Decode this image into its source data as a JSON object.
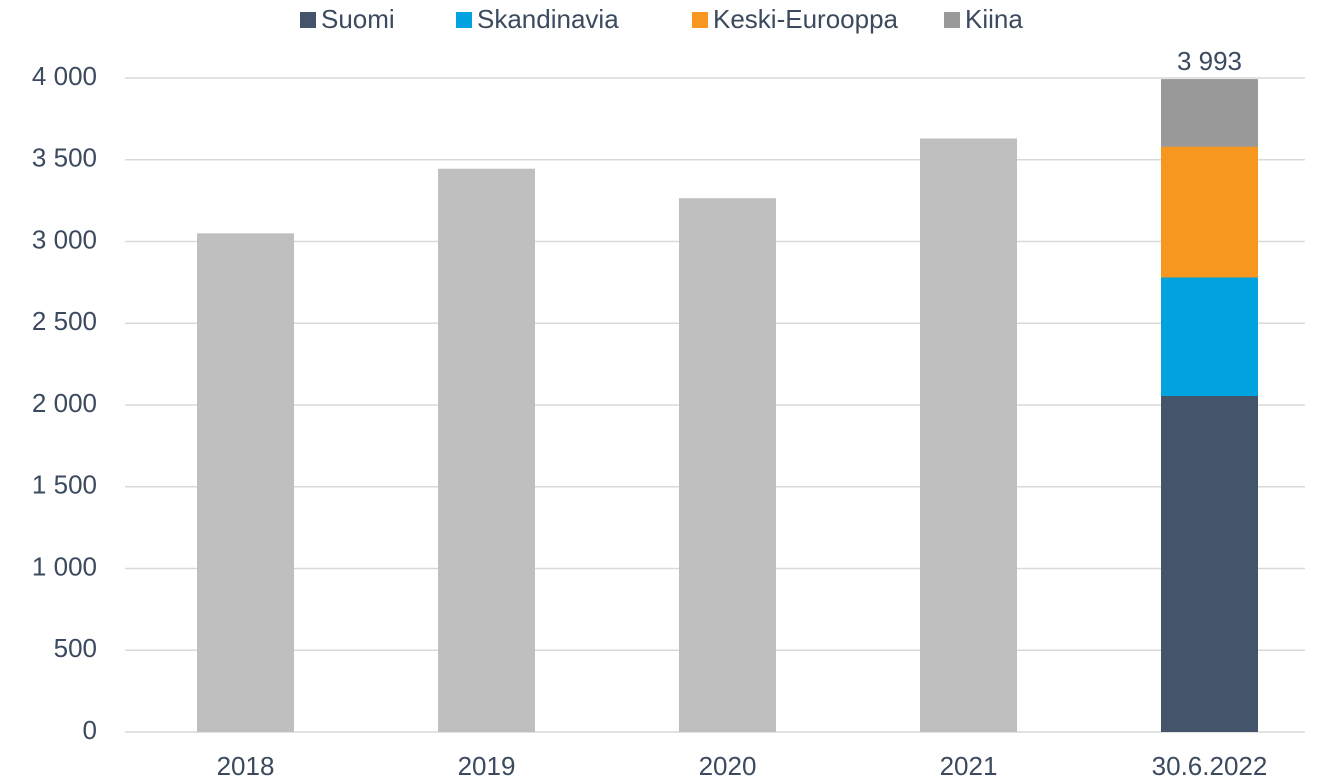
{
  "chart_data": {
    "type": "bar",
    "categories": [
      "2018",
      "2019",
      "2020",
      "2021",
      "30.6.2022"
    ],
    "values": [
      3050,
      3445,
      3265,
      3630,
      3993
    ],
    "value_labels": [
      null,
      null,
      null,
      null,
      "3 993"
    ],
    "color": "#bfbfbf",
    "series": [
      {
        "name": "Suomi",
        "color": "#44546a",
        "values": [
          null,
          null,
          null,
          null,
          2055
        ]
      },
      {
        "name": "Skandinavia",
        "color": "#00a3e0",
        "values": [
          null,
          null,
          null,
          null,
          725
        ]
      },
      {
        "name": "Keski-Eurooppa",
        "color": "#f7971f",
        "values": [
          null,
          null,
          null,
          null,
          800
        ]
      },
      {
        "name": "Kiina",
        "color": "#999999",
        "values": [
          null,
          null,
          null,
          null,
          413
        ]
      }
    ],
    "ylim": [
      0,
      4000
    ],
    "yticks": [
      0,
      500,
      {
        "value": 1000,
        "label": "1 000"
      },
      {
        "value": 1500,
        "label": "1 500"
      },
      {
        "value": 2000,
        "label": "2 000"
      },
      {
        "value": 2500,
        "label": "2 500"
      },
      {
        "value": 3000,
        "label": "3 000"
      },
      {
        "value": 3500,
        "label": "3 500"
      },
      {
        "value": 4000,
        "label": "4 000"
      }
    ],
    "grid": true,
    "legend": "top"
  }
}
